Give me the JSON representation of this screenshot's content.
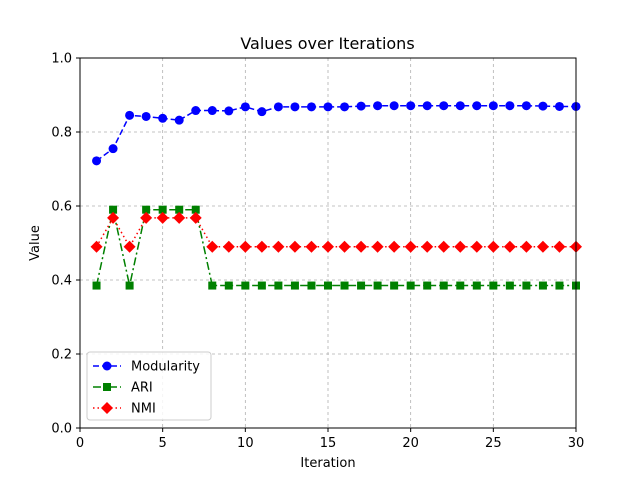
{
  "chart_data": {
    "type": "line",
    "title": "Values over Iterations",
    "xlabel": "Iteration",
    "ylabel": "Value",
    "xlim": [
      0,
      30
    ],
    "ylim": [
      0.0,
      1.0
    ],
    "xticks": [
      0,
      5,
      10,
      15,
      20,
      25,
      30
    ],
    "yticks": [
      0.0,
      0.2,
      0.4,
      0.6,
      0.8,
      1.0
    ],
    "xtick_labels": [
      "0",
      "5",
      "10",
      "15",
      "20",
      "25",
      "30"
    ],
    "ytick_labels": [
      "0.0",
      "0.2",
      "0.4",
      "0.6",
      "0.8",
      "1.0"
    ],
    "grid": true,
    "legend_position": "lower-left",
    "x": [
      1,
      2,
      3,
      4,
      5,
      6,
      7,
      8,
      9,
      10,
      11,
      12,
      13,
      14,
      15,
      16,
      17,
      18,
      19,
      20,
      21,
      22,
      23,
      24,
      25,
      26,
      27,
      28,
      29,
      30
    ],
    "series": [
      {
        "name": "Modularity",
        "color": "#0000ff",
        "marker": "circle",
        "linestyle": "dashed",
        "values": [
          0.722,
          0.755,
          0.845,
          0.842,
          0.837,
          0.832,
          0.858,
          0.858,
          0.857,
          0.868,
          0.855,
          0.868,
          0.868,
          0.868,
          0.868,
          0.868,
          0.87,
          0.871,
          0.871,
          0.871,
          0.871,
          0.871,
          0.871,
          0.871,
          0.871,
          0.871,
          0.871,
          0.87,
          0.869,
          0.869
        ]
      },
      {
        "name": "ARI",
        "color": "#008000",
        "marker": "square",
        "linestyle": "dashdot",
        "values": [
          0.385,
          0.59,
          0.385,
          0.59,
          0.59,
          0.59,
          0.59,
          0.385,
          0.385,
          0.385,
          0.385,
          0.385,
          0.385,
          0.385,
          0.385,
          0.385,
          0.385,
          0.385,
          0.385,
          0.385,
          0.385,
          0.385,
          0.385,
          0.385,
          0.385,
          0.385,
          0.385,
          0.385,
          0.385,
          0.385
        ]
      },
      {
        "name": "NMI",
        "color": "#ff0000",
        "marker": "diamond",
        "linestyle": "dotted",
        "values": [
          0.49,
          0.568,
          0.49,
          0.568,
          0.568,
          0.568,
          0.568,
          0.49,
          0.49,
          0.49,
          0.49,
          0.49,
          0.49,
          0.49,
          0.49,
          0.49,
          0.49,
          0.49,
          0.49,
          0.49,
          0.49,
          0.49,
          0.49,
          0.49,
          0.49,
          0.49,
          0.49,
          0.49,
          0.49,
          0.49
        ]
      }
    ]
  }
}
